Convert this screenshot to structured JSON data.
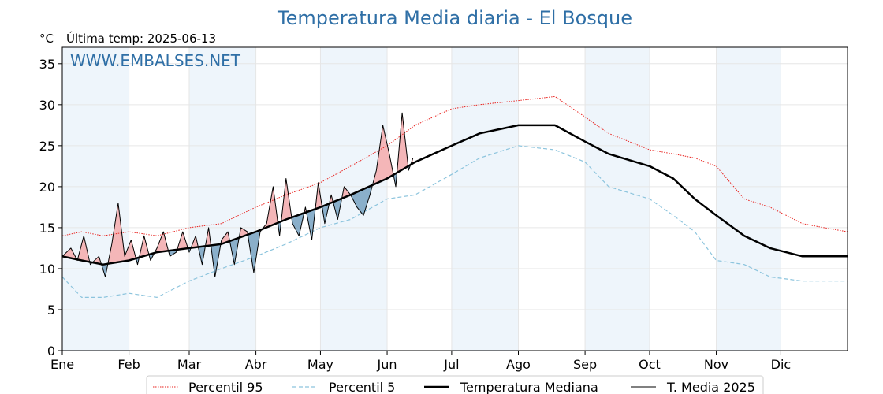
{
  "chart_data": {
    "type": "line",
    "title": "Temperatura Media diaria - El Bosque",
    "subtitle": "Última temp: 2025-06-13",
    "watermark": "WWW.EMBALSES.NET",
    "ylabel": "°C",
    "xlabel": "",
    "ylim": [
      0,
      37
    ],
    "yticks": [
      0,
      5,
      10,
      15,
      20,
      25,
      30,
      35
    ],
    "x_domain": [
      1,
      366
    ],
    "month_labels": [
      "Ene",
      "Feb",
      "Mar",
      "Abr",
      "May",
      "Jun",
      "Jul",
      "Ago",
      "Sep",
      "Oct",
      "Nov",
      "Dic"
    ],
    "month_starts": [
      1,
      32,
      60,
      91,
      121,
      152,
      182,
      213,
      244,
      274,
      305,
      335
    ],
    "shaded_months": [
      0,
      2,
      4,
      6,
      8,
      10
    ],
    "grid": true,
    "legend_position": "bottom",
    "colors": {
      "title": "#2f6fa6",
      "p95": "#e8231f",
      "p5": "#8cc4dd",
      "median": "#000000",
      "current": "#000000",
      "above_fill": "#f4b6b8",
      "below_fill": "#8aafca",
      "shade": "#eef5fb"
    },
    "series": [
      {
        "name": "Percentil 95",
        "style": "dotted",
        "x": [
          1,
          10,
          20,
          32,
          45,
          60,
          75,
          91,
          105,
          121,
          135,
          152,
          165,
          182,
          195,
          213,
          230,
          244,
          255,
          274,
          285,
          295,
          305,
          318,
          330,
          345,
          355,
          366
        ],
        "values": [
          14.0,
          14.5,
          14.0,
          14.5,
          14.0,
          15.0,
          15.5,
          17.5,
          19.0,
          20.5,
          22.5,
          25.0,
          27.5,
          29.5,
          30.0,
          30.5,
          31.0,
          28.5,
          26.5,
          24.5,
          24.0,
          23.5,
          22.5,
          18.5,
          17.5,
          15.5,
          15.0,
          14.5
        ]
      },
      {
        "name": "Percentil 5",
        "style": "dashed",
        "x": [
          1,
          10,
          20,
          32,
          45,
          60,
          75,
          91,
          105,
          121,
          135,
          152,
          165,
          182,
          195,
          213,
          230,
          244,
          255,
          274,
          285,
          295,
          305,
          318,
          330,
          345,
          355,
          366
        ],
        "values": [
          9.0,
          6.5,
          6.5,
          7.0,
          6.5,
          8.5,
          10.0,
          11.5,
          13.0,
          15.0,
          16.0,
          18.5,
          19.0,
          21.5,
          23.5,
          25.0,
          24.5,
          23.0,
          20.0,
          18.5,
          16.5,
          14.5,
          11.0,
          10.5,
          9.0,
          8.5,
          8.5,
          8.5
        ]
      },
      {
        "name": "Temperatura Mediana",
        "style": "thick",
        "x": [
          1,
          10,
          20,
          32,
          45,
          60,
          75,
          91,
          105,
          121,
          135,
          152,
          165,
          182,
          195,
          213,
          230,
          244,
          255,
          274,
          285,
          295,
          305,
          318,
          330,
          345,
          355,
          366
        ],
        "values": [
          11.5,
          11.0,
          10.5,
          11.0,
          12.0,
          12.5,
          13.0,
          14.5,
          16.0,
          17.5,
          19.0,
          21.0,
          23.0,
          25.0,
          26.5,
          27.5,
          27.5,
          25.5,
          24.0,
          22.5,
          21.0,
          18.5,
          16.5,
          14.0,
          12.5,
          11.5,
          11.5,
          11.5
        ]
      },
      {
        "name": "T. Media 2025",
        "style": "thin",
        "x": [
          1,
          5,
          8,
          11,
          14,
          18,
          21,
          24,
          27,
          30,
          33,
          36,
          39,
          42,
          45,
          48,
          51,
          54,
          57,
          60,
          63,
          66,
          69,
          72,
          75,
          78,
          81,
          84,
          87,
          90,
          93,
          96,
          99,
          102,
          105,
          108,
          111,
          114,
          117,
          120,
          123,
          126,
          129,
          132,
          135,
          138,
          141,
          144,
          147,
          150,
          153,
          156,
          159,
          162,
          164
        ],
        "values": [
          11.5,
          12.5,
          11.0,
          14.0,
          10.5,
          11.5,
          9.0,
          13.0,
          18.0,
          11.5,
          13.5,
          10.5,
          14.0,
          11.0,
          12.5,
          14.5,
          11.5,
          12.0,
          14.5,
          12.0,
          14.0,
          10.5,
          15.0,
          9.0,
          13.5,
          14.5,
          10.5,
          15.0,
          14.5,
          9.5,
          14.5,
          15.5,
          20.0,
          14.0,
          21.0,
          15.5,
          14.0,
          17.5,
          13.5,
          20.5,
          15.5,
          19.0,
          16.0,
          20.0,
          19.0,
          17.5,
          16.5,
          19.0,
          22.0,
          27.5,
          24.0,
          20.0,
          29.0,
          22.0,
          23.5
        ]
      }
    ],
    "legend": [
      "Percentil 95",
      "Percentil 5",
      "Temperatura Mediana",
      "T. Media 2025"
    ]
  }
}
